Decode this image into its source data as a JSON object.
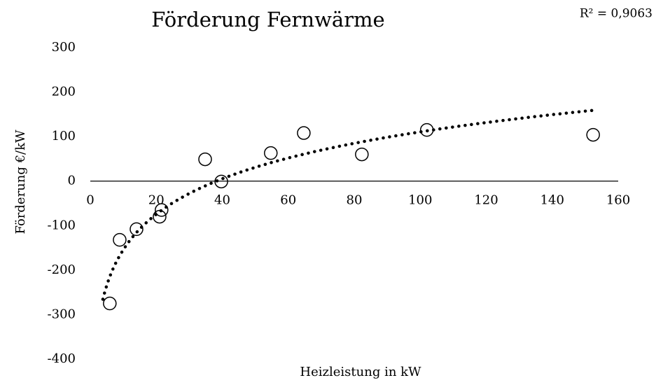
{
  "chart_data": {
    "type": "scatter",
    "title": "Förderung Fernwärme",
    "annotation": "R² = 0,9063",
    "xlabel": "Heizleistung in kW",
    "ylabel": "Förderung €/kW",
    "x": [
      5.9,
      8.9,
      14,
      21,
      21.6,
      34.8,
      39.7,
      54.7,
      64.7,
      82.3,
      102,
      152.4
    ],
    "values": [
      -275,
      -132,
      -108,
      -80,
      -65,
      49,
      -1,
      63,
      108,
      60,
      115,
      104
    ],
    "color": "#000000",
    "trendline": {
      "type": "logarithmic",
      "coefficient": 115,
      "intercept": -419,
      "x": [
        3.8,
        152.6
      ]
    },
    "xlim": [
      0,
      160
    ],
    "xticks": [
      0,
      20,
      40,
      60,
      80,
      100,
      120,
      140,
      160
    ],
    "ylim": [
      -400,
      300
    ],
    "yticks": [
      -400,
      -300,
      -200,
      -100,
      0,
      100,
      200,
      300
    ],
    "grid": false
  }
}
